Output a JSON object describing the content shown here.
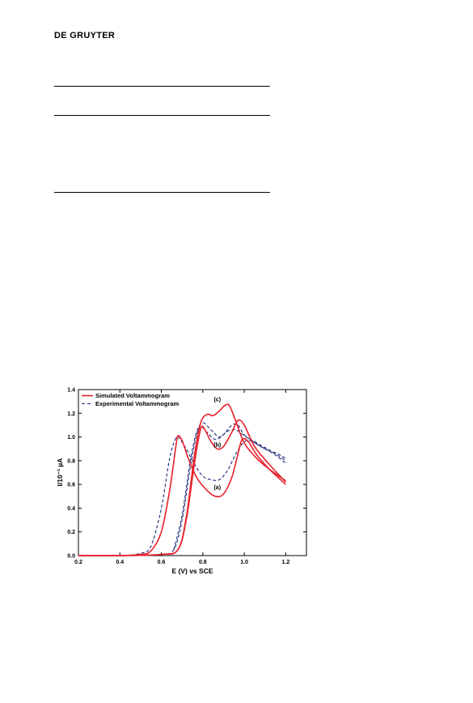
{
  "header": {
    "publisher": "DE GRUYTER"
  },
  "table_rules": [
    {},
    {},
    {}
  ],
  "chart_data": {
    "type": "line",
    "xlabel": "E (V) vs SCE",
    "ylabel": "I/10⁻¹ µA",
    "xlim": [
      0.2,
      1.3
    ],
    "ylim": [
      0.0,
      1.4
    ],
    "xticks": [
      "0.2",
      "0.4",
      "0.6",
      "0.8",
      "1.0",
      "1.2"
    ],
    "yticks": [
      "0.0",
      "0.2",
      "0.4",
      "0.6",
      "0.8",
      "1.0",
      "1.2",
      "1.4"
    ],
    "legend_position": "top-left",
    "legend": [
      {
        "label": "Simulated Voltammogram",
        "color": "#e8202a",
        "style": "solid"
      },
      {
        "label": "Experimental Voltammogram",
        "color": "#1f2a7a",
        "style": "dashed"
      }
    ],
    "annotations": [
      {
        "text": "(a)",
        "x": 0.87,
        "y": 0.56
      },
      {
        "text": "(b)",
        "x": 0.87,
        "y": 0.92
      },
      {
        "text": "(c)",
        "x": 0.87,
        "y": 1.3
      }
    ],
    "series": [
      {
        "group": "Simulated Voltammogram",
        "curve": "(a)",
        "color": "#e8202a",
        "dash": false,
        "points": [
          [
            0.2,
            0
          ],
          [
            0.4,
            0
          ],
          [
            0.5,
            0.01
          ],
          [
            0.55,
            0.04
          ],
          [
            0.6,
            0.2
          ],
          [
            0.64,
            0.55
          ],
          [
            0.67,
            0.92
          ],
          [
            0.68,
            1.01
          ],
          [
            0.7,
            0.97
          ],
          [
            0.73,
            0.82
          ],
          [
            0.77,
            0.66
          ],
          [
            0.82,
            0.55
          ],
          [
            0.86,
            0.5
          ],
          [
            0.9,
            0.52
          ],
          [
            0.94,
            0.66
          ],
          [
            0.97,
            0.86
          ],
          [
            0.99,
            0.98
          ],
          [
            1.02,
            0.96
          ],
          [
            1.06,
            0.85
          ],
          [
            1.12,
            0.73
          ],
          [
            1.2,
            0.6
          ]
        ]
      },
      {
        "group": "Simulated Voltammogram",
        "curve": "(b)",
        "color": "#e8202a",
        "dash": false,
        "points": [
          [
            0.2,
            0
          ],
          [
            0.4,
            0
          ],
          [
            0.6,
            0.01
          ],
          [
            0.68,
            0.05
          ],
          [
            0.72,
            0.3
          ],
          [
            0.76,
            0.78
          ],
          [
            0.79,
            1.07
          ],
          [
            0.81,
            1.06
          ],
          [
            0.84,
            0.96
          ],
          [
            0.87,
            0.9
          ],
          [
            0.9,
            0.92
          ],
          [
            0.94,
            1.04
          ],
          [
            0.97,
            1.14
          ],
          [
            1.0,
            1.1
          ],
          [
            1.05,
            0.92
          ],
          [
            1.12,
            0.77
          ],
          [
            1.2,
            0.62
          ]
        ]
      },
      {
        "group": "Simulated Voltammogram",
        "curve": "(c)",
        "color": "#e8202a",
        "dash": false,
        "points": [
          [
            0.2,
            0
          ],
          [
            0.4,
            0
          ],
          [
            0.6,
            0.01
          ],
          [
            0.68,
            0.05
          ],
          [
            0.72,
            0.32
          ],
          [
            0.76,
            0.85
          ],
          [
            0.79,
            1.12
          ],
          [
            0.82,
            1.19
          ],
          [
            0.85,
            1.18
          ],
          [
            0.88,
            1.22
          ],
          [
            0.91,
            1.27
          ],
          [
            0.93,
            1.26
          ],
          [
            0.96,
            1.13
          ],
          [
            1.0,
            0.95
          ],
          [
            1.06,
            0.82
          ],
          [
            1.12,
            0.73
          ],
          [
            1.2,
            0.63
          ]
        ]
      },
      {
        "group": "Experimental Voltammogram",
        "curve": "(a)",
        "color": "#1f2a7a",
        "dash": true,
        "points": [
          [
            0.2,
            0
          ],
          [
            0.4,
            0
          ],
          [
            0.5,
            0.02
          ],
          [
            0.55,
            0.08
          ],
          [
            0.6,
            0.4
          ],
          [
            0.64,
            0.82
          ],
          [
            0.67,
            0.99
          ],
          [
            0.69,
            0.98
          ],
          [
            0.72,
            0.9
          ],
          [
            0.76,
            0.77
          ],
          [
            0.8,
            0.67
          ],
          [
            0.84,
            0.64
          ],
          [
            0.88,
            0.64
          ],
          [
            0.92,
            0.72
          ],
          [
            0.96,
            0.86
          ],
          [
            1.0,
            0.96
          ],
          [
            1.04,
            0.96
          ],
          [
            1.1,
            0.9
          ],
          [
            1.16,
            0.86
          ],
          [
            1.2,
            0.82
          ]
        ]
      },
      {
        "group": "Experimental Voltammogram",
        "curve": "(b)",
        "color": "#1f2a7a",
        "dash": true,
        "points": [
          [
            0.2,
            0
          ],
          [
            0.4,
            0
          ],
          [
            0.6,
            0.01
          ],
          [
            0.66,
            0.05
          ],
          [
            0.7,
            0.3
          ],
          [
            0.74,
            0.75
          ],
          [
            0.77,
            1.02
          ],
          [
            0.79,
            1.09
          ],
          [
            0.82,
            1.04
          ],
          [
            0.86,
            0.98
          ],
          [
            0.9,
            1.02
          ],
          [
            0.94,
            1.1
          ],
          [
            0.97,
            1.1
          ],
          [
            1.0,
            1.02
          ],
          [
            1.06,
            0.94
          ],
          [
            1.14,
            0.86
          ],
          [
            1.2,
            0.78
          ]
        ]
      },
      {
        "group": "Experimental Voltammogram",
        "curve": "(c)",
        "color": "#1f2a7a",
        "dash": true,
        "points": [
          [
            0.66,
            0.05
          ],
          [
            0.7,
            0.34
          ],
          [
            0.74,
            0.8
          ],
          [
            0.77,
            1.04
          ],
          [
            0.8,
            1.12
          ],
          [
            0.84,
            1.06
          ],
          [
            0.88,
            1.0
          ],
          [
            0.92,
            1.05
          ],
          [
            0.96,
            1.06
          ],
          [
            1.0,
            1.01
          ],
          [
            1.06,
            0.95
          ],
          [
            1.14,
            0.87
          ],
          [
            1.2,
            0.8
          ]
        ]
      }
    ]
  }
}
